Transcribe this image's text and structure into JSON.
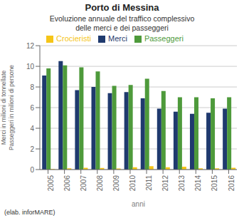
{
  "chart_data": {
    "type": "bar",
    "title": "Porto di Messina",
    "subtitle": "Evoluzione annuale del traffico complessivo\ndelle merci e dei passeggeri",
    "categories": [
      "2005",
      "2006",
      "2007",
      "2008",
      "2009",
      "2010",
      "2011",
      "2012",
      "2013",
      "2014",
      "2015",
      "2016"
    ],
    "series": [
      {
        "name": "Merci",
        "color": "#1F3A6E",
        "values": [
          9.1,
          10.5,
          7.7,
          8.0,
          7.4,
          7.5,
          6.9,
          5.9,
          5.6,
          5.4,
          5.5,
          5.9
        ]
      },
      {
        "name": "Passeggeri",
        "color": "#4E9A3B",
        "values": [
          9.8,
          10.1,
          9.9,
          9.5,
          8.1,
          8.2,
          8.8,
          7.6,
          7.0,
          7.0,
          6.9,
          7.0
        ]
      },
      {
        "name": "Crocieristi",
        "color": "#F5C518",
        "values": [
          0.05,
          0.12,
          0.18,
          0.15,
          0.1,
          0.22,
          0.32,
          0.22,
          0.28,
          0.12,
          0.12,
          0.18
        ]
      }
    ],
    "xlabel": "anni",
    "ylabel": "Merci in milioni di tonnellate\nPasseggeri in milioni di persone",
    "ylim": [
      0,
      12
    ],
    "yticks": [
      0,
      2,
      4,
      6,
      8,
      10,
      12
    ],
    "grid": true,
    "legend": "top",
    "annotations": [
      "(elab. inforMARE)"
    ]
  }
}
